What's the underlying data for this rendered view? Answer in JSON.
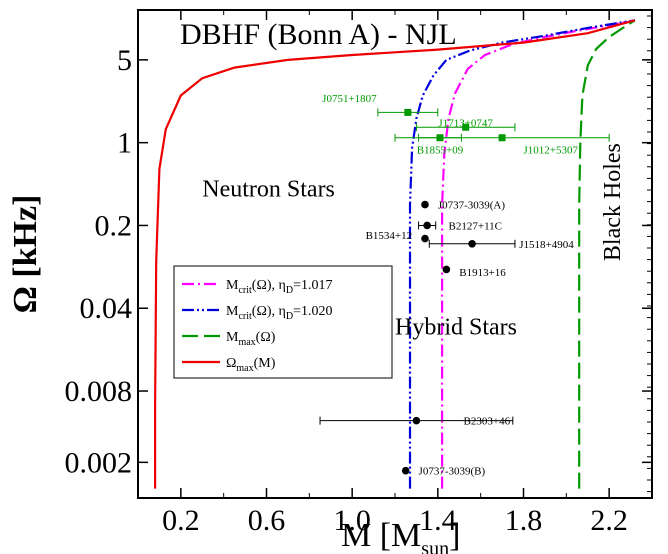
{
  "chart_data": {
    "type": "line",
    "title": "DBHF (Bonn A) - NJL",
    "xlabel": "M [M",
    "xlabel_sub": "sun",
    "xlabel_close": "]",
    "ylabel": "Ω [kHz]",
    "y_scale": "log",
    "xlim": [
      0.0,
      2.4
    ],
    "ylim_log10": [
      -3.0,
      1.12
    ],
    "x_ticks": [
      {
        "v": 0.2,
        "label": "0.2"
      },
      {
        "v": 0.6,
        "label": "0.6"
      },
      {
        "v": 1.0,
        "label": "1.0"
      },
      {
        "v": 1.4,
        "label": "1.4"
      },
      {
        "v": 1.8,
        "label": "1.8"
      },
      {
        "v": 2.2,
        "label": "2.2"
      }
    ],
    "y_ticks": [
      {
        "v": 0.002,
        "label": "0.002"
      },
      {
        "v": 0.008,
        "label": "0.008"
      },
      {
        "v": 0.04,
        "label": "0.04"
      },
      {
        "v": 0.2,
        "label": "0.2"
      },
      {
        "v": 1,
        "label": "1"
      },
      {
        "v": 5,
        "label": "5"
      }
    ],
    "grid": false,
    "legend_position": "center-left",
    "series": [
      {
        "key": "crit1017",
        "name": "M",
        "name_sub": "crit",
        "name_tail": "(Ω), η",
        "name_sub2": "D",
        "name_end": "=1.017",
        "color": "#ff00ff",
        "dash": "12,4,2,4",
        "points": [
          [
            1.42,
            0.0012
          ],
          [
            1.42,
            0.05
          ],
          [
            1.42,
            0.3
          ],
          [
            1.43,
            0.8
          ],
          [
            1.45,
            1.6
          ],
          [
            1.48,
            2.6
          ],
          [
            1.54,
            4.2
          ],
          [
            1.62,
            5.5
          ],
          [
            1.75,
            6.8
          ],
          [
            1.9,
            7.8
          ],
          [
            2.05,
            8.8
          ],
          [
            2.2,
            9.8
          ],
          [
            2.32,
            10.8
          ]
        ]
      },
      {
        "key": "crit1020",
        "name": "M",
        "name_sub": "crit",
        "name_tail": "(Ω), η",
        "name_sub2": "D",
        "name_end": "=1.020",
        "color": "#0000dd",
        "dash": "12,3,2,3,2,3",
        "points": [
          [
            1.27,
            0.0012
          ],
          [
            1.27,
            0.05
          ],
          [
            1.27,
            0.3
          ],
          [
            1.28,
            0.9
          ],
          [
            1.3,
            1.6
          ],
          [
            1.33,
            2.5
          ],
          [
            1.38,
            3.7
          ],
          [
            1.44,
            5.0
          ],
          [
            1.55,
            6.0
          ],
          [
            1.7,
            7.0
          ],
          [
            1.9,
            8.0
          ],
          [
            2.1,
            9.3
          ],
          [
            2.32,
            10.8
          ]
        ]
      },
      {
        "key": "mmax",
        "name": "M",
        "name_sub": "max",
        "name_tail": "(Ω)",
        "name_sub2": "",
        "name_end": "",
        "color": "#009900",
        "dash": "16,6",
        "points": [
          [
            2.06,
            0.0012
          ],
          [
            2.06,
            0.05
          ],
          [
            2.06,
            0.3
          ],
          [
            2.065,
            1.0
          ],
          [
            2.075,
            2.5
          ],
          [
            2.1,
            4.5
          ],
          [
            2.14,
            6.2
          ],
          [
            2.2,
            7.8
          ],
          [
            2.26,
            9.2
          ],
          [
            2.32,
            10.8
          ]
        ]
      },
      {
        "key": "omegamax",
        "name": "Ω",
        "name_sub": "max",
        "name_tail": "(M)",
        "name_sub2": "",
        "name_end": "",
        "color": "#ee0000",
        "dash": "",
        "points": [
          [
            0.08,
            0.0012
          ],
          [
            0.08,
            0.006
          ],
          [
            0.085,
            0.1
          ],
          [
            0.1,
            0.6
          ],
          [
            0.13,
            1.3
          ],
          [
            0.2,
            2.5
          ],
          [
            0.3,
            3.5
          ],
          [
            0.45,
            4.3
          ],
          [
            0.7,
            5.0
          ],
          [
            1.0,
            5.5
          ],
          [
            1.4,
            6.1
          ],
          [
            1.8,
            7.0
          ],
          [
            2.1,
            8.4
          ],
          [
            2.32,
            10.8
          ]
        ]
      }
    ],
    "pulsars": [
      {
        "name": "J0751+1807",
        "m": 1.26,
        "m_err": 0.14,
        "omega": 1.8,
        "color": "#009900",
        "marker": "square",
        "label_dm": -0.4,
        "label_dlog": 0.12,
        "label_anchor": "start"
      },
      {
        "name": "J1713+0747",
        "m": 1.53,
        "m_err": 0.23,
        "omega": 1.35,
        "color": "#009900",
        "marker": "square",
        "label_dm": 0.0,
        "label_dlog": 0.04,
        "label_anchor": "middle"
      },
      {
        "name": "J1012+5307",
        "m": 1.7,
        "m_err": 0.5,
        "omega": 1.1,
        "color": "#009900",
        "marker": "square",
        "label_dm": 0.1,
        "label_dlog": -0.1,
        "label_anchor": "start"
      },
      {
        "name": "B1855+09",
        "m": 1.41,
        "m_err": 0.1,
        "omega": 1.1,
        "color": "#009900",
        "marker": "square",
        "label_dm": 0.0,
        "label_dlog": -0.1,
        "label_anchor": "middle"
      },
      {
        "name": "J0737-3039(A)",
        "m": 1.34,
        "m_err": 0.0,
        "omega": 0.3,
        "color": "#000000",
        "marker": "circle",
        "label_dm": 0.06,
        "label_dlog": 0.0,
        "label_anchor": "start"
      },
      {
        "name": "B2127+11C",
        "m": 1.35,
        "m_err": 0.04,
        "omega": 0.2,
        "color": "#000000",
        "marker": "circle",
        "label_dm": 0.1,
        "label_dlog": 0.0,
        "label_anchor": "start"
      },
      {
        "name": "B1534+12",
        "m": 1.34,
        "m_err": 0.0,
        "omega": 0.155,
        "color": "#000000",
        "marker": "circle",
        "label_dm": -0.06,
        "label_dlog": 0.03,
        "label_anchor": "end"
      },
      {
        "name": "J1518+4904",
        "m": 1.56,
        "m_err": 0.2,
        "omega": 0.14,
        "color": "#000000",
        "marker": "circle",
        "label_dm": 0.22,
        "label_dlog": 0.0,
        "label_anchor": "start"
      },
      {
        "name": "B1913+16",
        "m": 1.44,
        "m_err": 0.0,
        "omega": 0.085,
        "color": "#000000",
        "marker": "circle",
        "label_dm": 0.06,
        "label_dlog": -0.02,
        "label_anchor": "start"
      },
      {
        "name": "B2303+46",
        "m": 1.3,
        "m_err": 0.45,
        "omega": 0.0045,
        "color": "#000000",
        "marker": "circle",
        "label_dm": 0.22,
        "label_dlog": 0.0,
        "label_anchor": "start"
      },
      {
        "name": "J0737-3039(B)",
        "m": 1.25,
        "m_err": 0.0,
        "omega": 0.0017,
        "color": "#000000",
        "marker": "circle",
        "label_dm": 0.06,
        "label_dlog": 0.0,
        "label_anchor": "start"
      }
    ],
    "annotations": [
      {
        "text": "Neutron Stars",
        "m": 0.3,
        "omega": 0.35,
        "rotate": false
      },
      {
        "text": "Hybrid Stars",
        "m": 1.2,
        "omega": 0.024,
        "rotate": false
      },
      {
        "text": "Black Holes",
        "m": 2.25,
        "omega": 0.1,
        "rotate": true
      }
    ]
  }
}
